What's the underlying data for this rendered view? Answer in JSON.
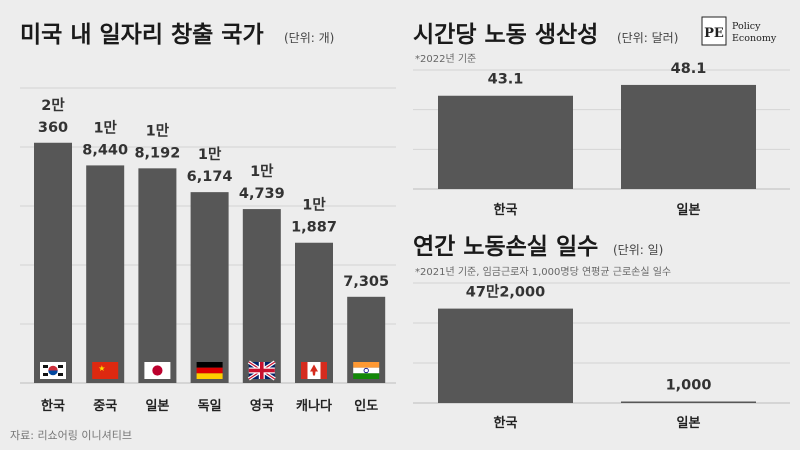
{
  "logo": {
    "mark": "PE",
    "line1": "Policy",
    "line2": "Economy"
  },
  "source": "자료: 리쇼어링 이니셔티브",
  "chart_data": [
    {
      "type": "bar",
      "title": "미국 내 일자리 창출 국가",
      "unit": "(단위: 개)",
      "categories": [
        "한국",
        "중국",
        "일본",
        "독일",
        "영국",
        "캐나다",
        "인도"
      ],
      "values": [
        20360,
        18440,
        18192,
        16174,
        14739,
        11887,
        7305
      ],
      "label_top": [
        "2만",
        "1만",
        "1만",
        "1만",
        "1만",
        "1만",
        ""
      ],
      "label_bottom": [
        "360",
        "8,440",
        "8,192",
        "6,174",
        "4,739",
        "1,887",
        "7,305"
      ],
      "flag_icons": [
        "flag-korea-icon",
        "flag-china-icon",
        "flag-japan-icon",
        "flag-germany-icon",
        "flag-uk-icon",
        "flag-canada-icon",
        "flag-india-icon"
      ],
      "ylim": [
        0,
        25000
      ],
      "grid": true
    },
    {
      "type": "bar",
      "title": "시간당 노동 생산성",
      "unit": "(단위: 달러)",
      "note": "*2022년 기준",
      "categories": [
        "한국",
        "일본"
      ],
      "values": [
        43.1,
        48.1
      ],
      "value_labels": [
        "43.1",
        "48.1"
      ],
      "ylim": [
        0,
        55
      ],
      "grid": true
    },
    {
      "type": "bar",
      "title": "연간 노동손실 일수",
      "unit": "(단위: 일)",
      "note": "*2021년 기준, 임금근로자 1,000명당 연평균 근로손실 일수",
      "categories": [
        "한국",
        "일본"
      ],
      "values": [
        472000,
        1000
      ],
      "value_labels": [
        "47만2,000",
        "1,000"
      ],
      "ylim": [
        0,
        600000
      ],
      "grid": true
    }
  ],
  "colors": {
    "bar": "#575757",
    "background": "#ededed",
    "grid": "#d4d4d4"
  }
}
